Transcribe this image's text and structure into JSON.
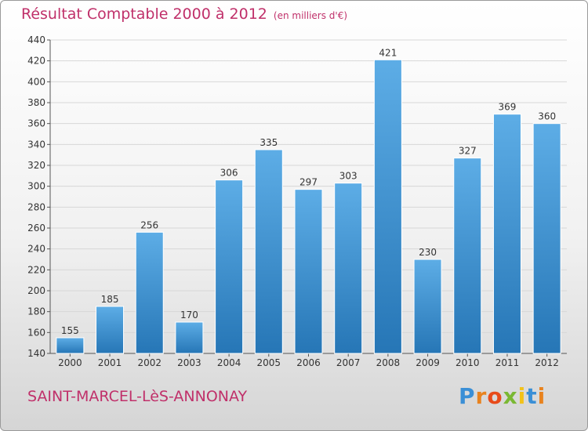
{
  "title": "Résultat Comptable 2000 à 2012",
  "subtitle": "(en milliers d'€)",
  "commune": "SAINT-MARCEL-LèS-ANNONAY",
  "brand": {
    "letters": [
      "P",
      "r",
      "o",
      "x",
      "i",
      "t",
      "i"
    ],
    "colors": [
      "#3a8fd6",
      "#e8831f",
      "#e84b1a",
      "#7ab833",
      "#f2c21a",
      "#3a8fd6",
      "#e8831f"
    ]
  },
  "colors": {
    "bar_light": "#5dade6",
    "bar_dark": "#2676b6",
    "title": "#c0306a",
    "grid": "#d7d7d7"
  },
  "chart_data": {
    "type": "bar",
    "title": "Résultat Comptable 2000 à 2012",
    "subtitle": "(en milliers d'€)",
    "categories": [
      "2000",
      "2001",
      "2002",
      "2003",
      "2004",
      "2005",
      "2006",
      "2007",
      "2008",
      "2009",
      "2010",
      "2011",
      "2012"
    ],
    "values": [
      155,
      185,
      256,
      170,
      306,
      335,
      297,
      303,
      421,
      230,
      327,
      369,
      360
    ],
    "ylim": [
      140,
      440
    ],
    "yticks": [
      140,
      160,
      180,
      200,
      220,
      240,
      260,
      280,
      300,
      320,
      340,
      360,
      380,
      400,
      420,
      440
    ],
    "grid": true,
    "data_labels": true
  }
}
